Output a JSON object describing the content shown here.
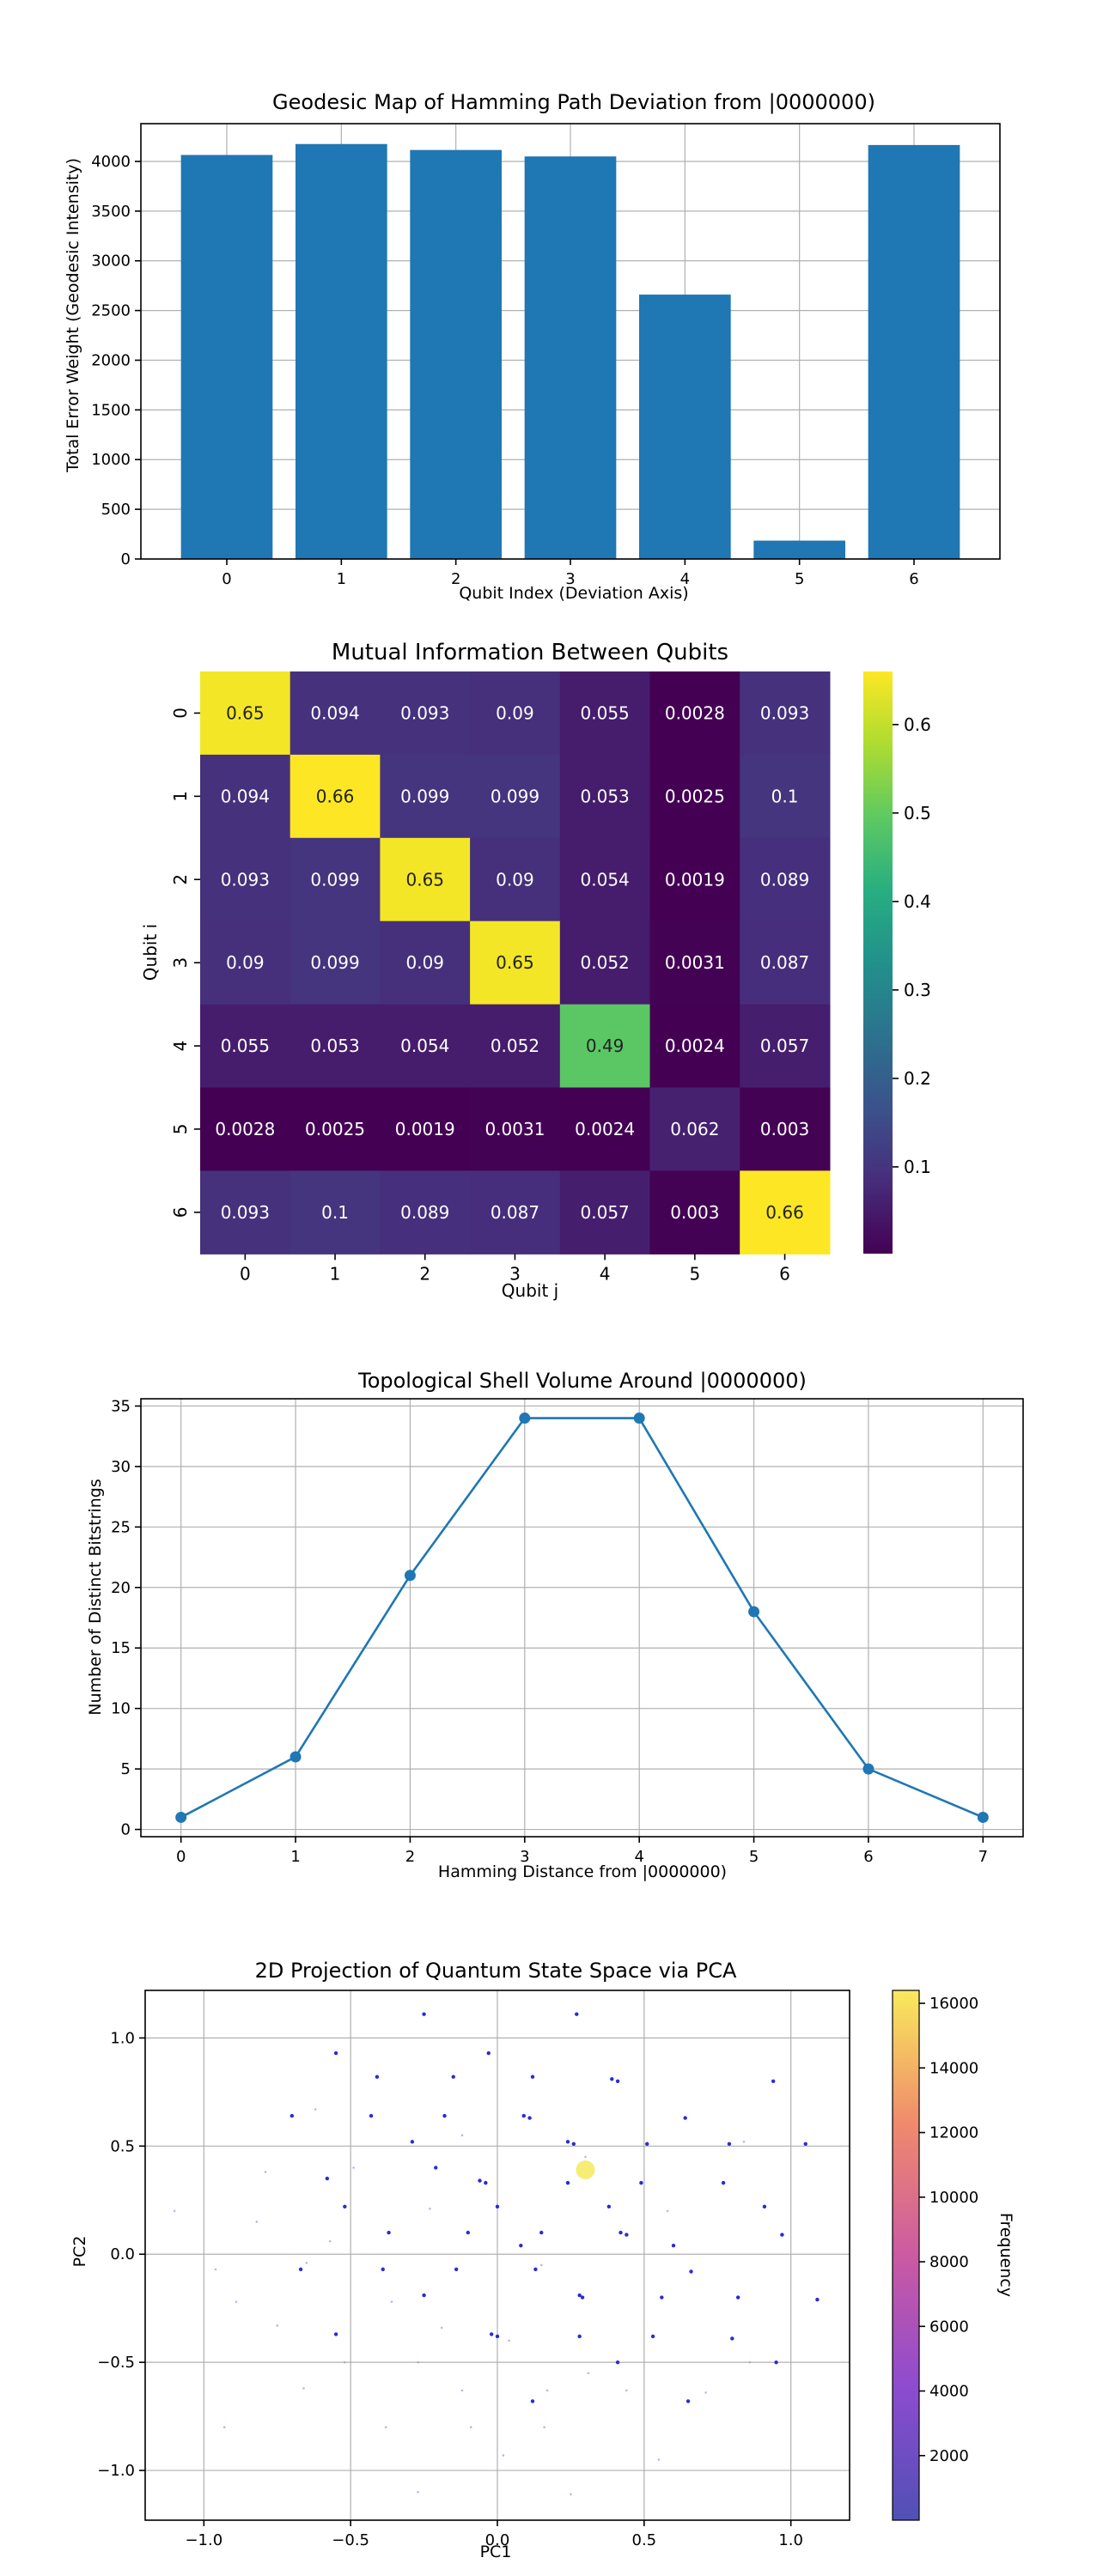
{
  "chart_data": [
    {
      "type": "bar",
      "title": "Geodesic Map of Hamming Path Deviation from |0000000)",
      "xlabel": "Qubit Index (Deviation Axis)",
      "ylabel": "Total Error Weight (Geodesic Intensity)",
      "categories": [
        "0",
        "1",
        "2",
        "3",
        "4",
        "5",
        "6"
      ],
      "values": [
        4065,
        4175,
        4115,
        4050,
        2660,
        185,
        4165
      ],
      "ylim": [
        0,
        4380
      ],
      "yticks": [
        "0",
        "500",
        "1000",
        "1500",
        "2000",
        "2500",
        "3000",
        "3500",
        "4000"
      ],
      "bar_color": "#1f77b4",
      "grid": true
    },
    {
      "type": "heatmap",
      "title": "Mutual Information Between Qubits",
      "xlabel": "Qubit j",
      "ylabel": "Qubit i",
      "row_labels": [
        "0",
        "1",
        "2",
        "3",
        "4",
        "5",
        "6"
      ],
      "col_labels": [
        "0",
        "1",
        "2",
        "3",
        "4",
        "5",
        "6"
      ],
      "values": [
        [
          0.65,
          0.094,
          0.093,
          0.09,
          0.055,
          0.0028,
          0.093
        ],
        [
          0.094,
          0.66,
          0.099,
          0.099,
          0.053,
          0.0025,
          0.1
        ],
        [
          0.093,
          0.099,
          0.65,
          0.09,
          0.054,
          0.0019,
          0.089
        ],
        [
          0.09,
          0.099,
          0.09,
          0.65,
          0.052,
          0.0031,
          0.087
        ],
        [
          0.055,
          0.053,
          0.054,
          0.052,
          0.49,
          0.0024,
          0.057
        ],
        [
          0.0028,
          0.0025,
          0.0019,
          0.0031,
          0.0024,
          0.062,
          0.003
        ],
        [
          0.093,
          0.1,
          0.089,
          0.087,
          0.057,
          0.003,
          0.66
        ]
      ],
      "labels": [
        [
          "0.65",
          "0.094",
          "0.093",
          "0.09",
          "0.055",
          "0.0028",
          "0.093"
        ],
        [
          "0.094",
          "0.66",
          "0.099",
          "0.099",
          "0.053",
          "0.0025",
          "0.1"
        ],
        [
          "0.093",
          "0.099",
          "0.65",
          "0.09",
          "0.054",
          "0.0019",
          "0.089"
        ],
        [
          "0.09",
          "0.099",
          "0.09",
          "0.65",
          "0.052",
          "0.0031",
          "0.087"
        ],
        [
          "0.055",
          "0.053",
          "0.054",
          "0.052",
          "0.49",
          "0.0024",
          "0.057"
        ],
        [
          "0.0028",
          "0.0025",
          "0.0019",
          "0.0031",
          "0.0024",
          "0.062",
          "0.003"
        ],
        [
          "0.093",
          "0.1",
          "0.089",
          "0.087",
          "0.057",
          "0.003",
          "0.66"
        ]
      ],
      "colormap": "viridis",
      "colorbar_range": [
        0.0019,
        0.66
      ],
      "colorbar_ticks": [
        "0.1",
        "0.2",
        "0.3",
        "0.4",
        "0.5",
        "0.6"
      ]
    },
    {
      "type": "line",
      "title": "Topological Shell Volume Around |0000000)",
      "xlabel": "Hamming Distance from |0000000)",
      "ylabel": "Number of Distinct Bitstrings",
      "x": [
        0,
        1,
        2,
        3,
        4,
        5,
        6,
        7
      ],
      "y": [
        1,
        6,
        21,
        34,
        34,
        18,
        5,
        1
      ],
      "xlim": [
        -0.35,
        7.35
      ],
      "ylim": [
        -0.6,
        35.6
      ],
      "xticks": [
        "0",
        "1",
        "2",
        "3",
        "4",
        "5",
        "6",
        "7"
      ],
      "yticks": [
        "0",
        "5",
        "10",
        "15",
        "20",
        "25",
        "30",
        "35"
      ],
      "line_color": "#1f77b4",
      "marker": "circle",
      "grid": true
    },
    {
      "type": "scatter",
      "title": "2D Projection of Quantum State Space via PCA",
      "xlabel": "PC1",
      "ylabel": "PC2",
      "xlim": [
        -1.2,
        1.2
      ],
      "ylim": [
        -1.23,
        1.22
      ],
      "xticks": [
        "−1.0",
        "−0.5",
        "0.0",
        "0.5",
        "1.0"
      ],
      "yticks": [
        "−1.0",
        "−0.5",
        "0.0",
        "0.5",
        "1.0"
      ],
      "colormap": "plasma",
      "colorbar_label": "Frequency",
      "colorbar_range": [
        1,
        16400
      ],
      "colorbar_ticks": [
        "2000",
        "4000",
        "6000",
        "8000",
        "10000",
        "12000",
        "14000",
        "16000"
      ],
      "grid": true,
      "highlight_point": {
        "x": 0.3,
        "y": 0.39,
        "frequency": 16384
      },
      "points_visible": [
        {
          "x": -0.25,
          "y": 1.11
        },
        {
          "x": 0.27,
          "y": 1.11
        },
        {
          "x": -0.55,
          "y": 0.93
        },
        {
          "x": -0.03,
          "y": 0.93
        },
        {
          "x": -0.41,
          "y": 0.82
        },
        {
          "x": -0.15,
          "y": 0.82
        },
        {
          "x": 0.12,
          "y": 0.82
        },
        {
          "x": 0.39,
          "y": 0.81
        },
        {
          "x": 0.41,
          "y": 0.8
        },
        {
          "x": 0.94,
          "y": 0.8
        },
        {
          "x": -0.7,
          "y": 0.64
        },
        {
          "x": -0.43,
          "y": 0.64
        },
        {
          "x": -0.18,
          "y": 0.64
        },
        {
          "x": 0.09,
          "y": 0.64
        },
        {
          "x": 0.11,
          "y": 0.63
        },
        {
          "x": 0.64,
          "y": 0.63
        },
        {
          "x": -0.29,
          "y": 0.52
        },
        {
          "x": 0.24,
          "y": 0.52
        },
        {
          "x": 0.26,
          "y": 0.51
        },
        {
          "x": 0.51,
          "y": 0.51
        },
        {
          "x": 0.79,
          "y": 0.51
        },
        {
          "x": 1.05,
          "y": 0.51
        },
        {
          "x": -0.21,
          "y": 0.4
        },
        {
          "x": -0.58,
          "y": 0.35
        },
        {
          "x": -0.06,
          "y": 0.34
        },
        {
          "x": -0.04,
          "y": 0.33
        },
        {
          "x": 0.24,
          "y": 0.33
        },
        {
          "x": 0.49,
          "y": 0.33
        },
        {
          "x": 0.77,
          "y": 0.33
        },
        {
          "x": -0.52,
          "y": 0.22
        },
        {
          "x": 0.0,
          "y": 0.22
        },
        {
          "x": 0.38,
          "y": 0.22
        },
        {
          "x": 0.91,
          "y": 0.22
        },
        {
          "x": -0.37,
          "y": 0.1
        },
        {
          "x": -0.1,
          "y": 0.1
        },
        {
          "x": 0.15,
          "y": 0.1
        },
        {
          "x": 0.42,
          "y": 0.1
        },
        {
          "x": 0.44,
          "y": 0.09
        },
        {
          "x": 0.97,
          "y": 0.09
        },
        {
          "x": 0.08,
          "y": 0.04
        },
        {
          "x": 0.6,
          "y": 0.04
        },
        {
          "x": -0.67,
          "y": -0.07
        },
        {
          "x": -0.39,
          "y": -0.07
        },
        {
          "x": -0.14,
          "y": -0.07
        },
        {
          "x": 0.13,
          "y": -0.07
        },
        {
          "x": 0.66,
          "y": -0.08
        },
        {
          "x": -0.25,
          "y": -0.19
        },
        {
          "x": 0.28,
          "y": -0.19
        },
        {
          "x": 0.29,
          "y": -0.2
        },
        {
          "x": 0.56,
          "y": -0.2
        },
        {
          "x": 0.82,
          "y": -0.2
        },
        {
          "x": 1.09,
          "y": -0.21
        },
        {
          "x": -0.55,
          "y": -0.37
        },
        {
          "x": -0.02,
          "y": -0.37
        },
        {
          "x": 0.0,
          "y": -0.38
        },
        {
          "x": 0.28,
          "y": -0.38
        },
        {
          "x": 0.53,
          "y": -0.38
        },
        {
          "x": 0.8,
          "y": -0.39
        },
        {
          "x": 0.41,
          "y": -0.5
        },
        {
          "x": 0.95,
          "y": -0.5
        },
        {
          "x": 0.12,
          "y": -0.68
        },
        {
          "x": 0.65,
          "y": -0.68
        }
      ],
      "points_faint": [
        {
          "x": -1.1,
          "y": 0.2
        },
        {
          "x": -0.79,
          "y": 0.38
        },
        {
          "x": -0.82,
          "y": 0.15
        },
        {
          "x": -0.57,
          "y": 0.06
        },
        {
          "x": -0.49,
          "y": 0.4
        },
        {
          "x": -0.96,
          "y": -0.07
        },
        {
          "x": -0.89,
          "y": -0.22
        },
        {
          "x": -0.65,
          "y": -0.04
        },
        {
          "x": -0.75,
          "y": -0.33
        },
        {
          "x": -0.52,
          "y": -0.5
        },
        {
          "x": -0.36,
          "y": -0.22
        },
        {
          "x": -0.66,
          "y": -0.62
        },
        {
          "x": -0.93,
          "y": -0.8
        },
        {
          "x": -0.38,
          "y": -0.8
        },
        {
          "x": -0.27,
          "y": -0.5
        },
        {
          "x": -0.12,
          "y": -0.63
        },
        {
          "x": -0.09,
          "y": -0.8
        },
        {
          "x": 0.02,
          "y": -0.93
        },
        {
          "x": 0.16,
          "y": -0.8
        },
        {
          "x": 0.25,
          "y": -1.11
        },
        {
          "x": -0.27,
          "y": -1.1
        },
        {
          "x": 0.31,
          "y": -0.55
        },
        {
          "x": 0.17,
          "y": -0.63
        },
        {
          "x": 0.44,
          "y": -0.63
        },
        {
          "x": 0.71,
          "y": -0.64
        },
        {
          "x": 0.55,
          "y": -0.95
        },
        {
          "x": 0.86,
          "y": -0.5
        },
        {
          "x": 0.04,
          "y": -0.4
        },
        {
          "x": -0.19,
          "y": -0.34
        },
        {
          "x": 0.15,
          "y": -0.05
        },
        {
          "x": -0.23,
          "y": 0.21
        },
        {
          "x": -0.12,
          "y": 0.55
        },
        {
          "x": 0.3,
          "y": 0.45
        },
        {
          "x": 0.58,
          "y": 0.2
        },
        {
          "x": 0.84,
          "y": 0.52
        },
        {
          "x": -0.62,
          "y": 0.67
        }
      ]
    }
  ]
}
